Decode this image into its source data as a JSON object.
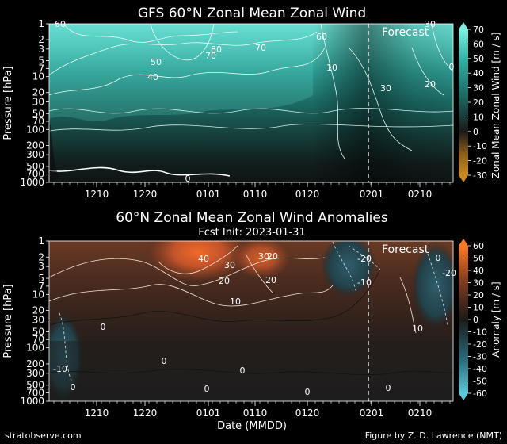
{
  "credit_left": "stratobserve.com",
  "credit_right": "Figure by Z. D. Lawrence (NMT)",
  "xlabel": "Date (MMDD)",
  "colors": {
    "background": "#000000",
    "text": "#ffffff",
    "forecast_line": "#ffffff"
  },
  "chart_data": [
    {
      "type": "heatmap",
      "title": "GFS 60°N Zonal Mean Zonal Wind",
      "subtitle": "",
      "ylabel": "Pressure [hPa]",
      "yscale": "log",
      "ylim": [
        1000,
        1
      ],
      "y_ticks": [
        1,
        2,
        3,
        5,
        7,
        10,
        20,
        30,
        50,
        70,
        100,
        200,
        300,
        500,
        700,
        1000
      ],
      "x_ticks": [
        "1210",
        "1220",
        "0101",
        "0110",
        "0120",
        "0201",
        "0210"
      ],
      "x_range": [
        "1201",
        "0215"
      ],
      "forecast_start": "0201",
      "forecast_label": "Forecast",
      "colorbar": {
        "label": "Zonal Mean Zonal Wind [m / s]",
        "min": -30,
        "max": 70,
        "step": 10,
        "ticks": [
          -30,
          -20,
          -10,
          0,
          10,
          20,
          30,
          40,
          50,
          60,
          70
        ]
      },
      "contour_labels": [
        "60",
        "50",
        "40",
        "80",
        "70",
        "70",
        "60",
        "30",
        "10",
        "30",
        "20",
        "0",
        "0"
      ],
      "grid": false
    },
    {
      "type": "heatmap",
      "title": "60°N Zonal Mean Zonal Wind Anomalies",
      "subtitle": "Fcst Init: 2023-01-31",
      "ylabel": "Pressure [hPa]",
      "yscale": "log",
      "ylim": [
        1000,
        1
      ],
      "y_ticks": [
        1,
        2,
        3,
        5,
        7,
        10,
        20,
        30,
        50,
        70,
        100,
        200,
        300,
        500,
        700,
        1000
      ],
      "x_ticks": [
        "1210",
        "1220",
        "0101",
        "0110",
        "0120",
        "0201",
        "0210"
      ],
      "x_range": [
        "1201",
        "0215"
      ],
      "forecast_start": "0201",
      "forecast_label": "Forecast",
      "colorbar": {
        "label": "Anomaly [m / s]",
        "min": -60,
        "max": 60,
        "step": 10,
        "ticks": [
          -60,
          -50,
          -40,
          -30,
          -20,
          -10,
          0,
          10,
          20,
          30,
          40,
          50,
          60
        ]
      },
      "contour_labels": [
        "40",
        "30",
        "20",
        "30",
        "20",
        "20",
        "10",
        "0",
        "-20",
        "-10",
        "0",
        "-20",
        "10",
        "0",
        "0",
        "-10",
        "0",
        "0",
        "0",
        "0"
      ],
      "grid": false
    }
  ]
}
